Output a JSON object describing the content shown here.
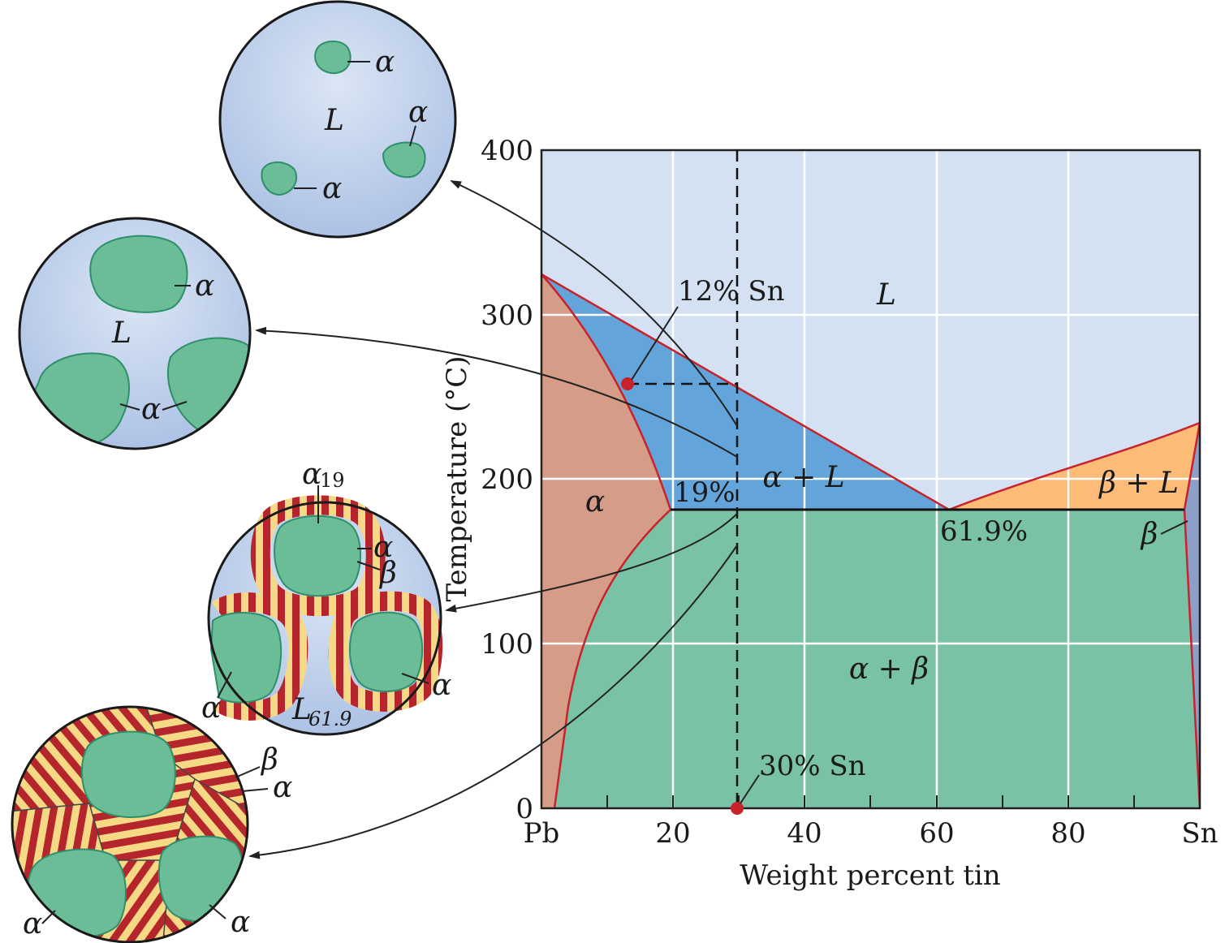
{
  "diagram": {
    "y_axis_title": "Temperature (°C)",
    "y_ticks": [
      "400",
      "300",
      "200",
      "100",
      "0"
    ],
    "x_axis_title": "Weight percent tin",
    "x_ticks": [
      "Pb",
      "20",
      "40",
      "60",
      "80",
      "Sn"
    ],
    "regions": {
      "liquid": "L",
      "alpha_plus_liquid": "α + L",
      "beta_plus_liquid": "β + L",
      "alpha": "α",
      "alpha_plus_beta": "α + β",
      "beta": "β"
    },
    "annotations": {
      "twelve_sn": "12% Sn",
      "nineteen": "19%",
      "eutectic": "61.9%",
      "thirty_sn": "30% Sn"
    },
    "colors": {
      "liquid": "#d3e1f2",
      "alpha_plus_liquid": "#63a5da",
      "alpha": "#d59c88",
      "alpha_plus_beta": "#7ac2a6",
      "beta_plus_liquid": "#fdbb78",
      "beta": "#8d9fc6",
      "boundary": "#c8232c"
    }
  },
  "micrographs": {
    "circle1": {
      "liquid": "L",
      "alpha_labels": [
        "α",
        "α",
        "α"
      ]
    },
    "circle2": {
      "liquid": "L",
      "alpha_labels": [
        "α",
        "α"
      ]
    },
    "circle3": {
      "alpha_top": "α",
      "alpha_sub": "19",
      "alpha_label": "α",
      "beta_label": "β",
      "alpha_bottom_left": "α",
      "alpha_bottom_right": "α",
      "liquid": "L",
      "liquid_sub": "61.9"
    },
    "circle4": {
      "beta_label": "β",
      "alpha_label": "α",
      "alpha_bottom_left": "α",
      "alpha_bottom_right": "α"
    }
  }
}
